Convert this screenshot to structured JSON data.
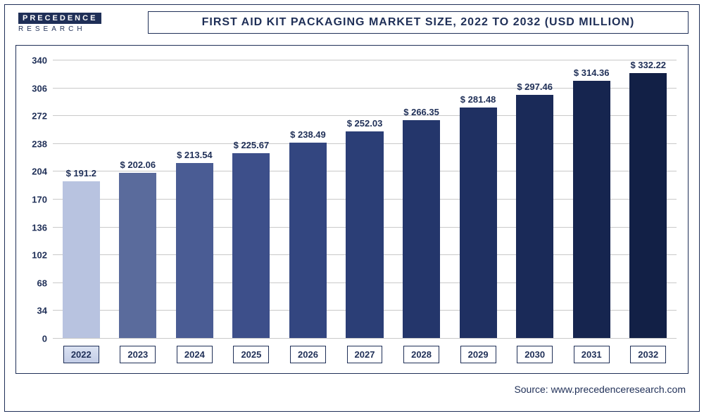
{
  "logo": {
    "line1": "PRECEDENCE",
    "line2": "RESEARCH"
  },
  "title": "FIRST AID KIT PACKAGING MARKET SIZE, 2022 TO 2032 (USD MILLION)",
  "source": "Source: www.precedenceresearch.com",
  "chart": {
    "type": "bar",
    "y_axis": {
      "min": 0,
      "max": 340,
      "ticks": [
        0,
        34,
        68,
        102,
        136,
        170,
        204,
        238,
        272,
        306,
        340
      ]
    },
    "grid_color": "#c9c9c9",
    "border_color": "#1f2f57",
    "text_color": "#1f2f57",
    "currency_prefix": "$ ",
    "bars": [
      {
        "year": "2022",
        "value": 191.2,
        "label": "$ 191.2",
        "color": "#b8c3e0",
        "current": true
      },
      {
        "year": "2023",
        "value": 202.06,
        "label": "$ 202.06",
        "color": "#5a6b9c",
        "current": false
      },
      {
        "year": "2024",
        "value": 213.54,
        "label": "$ 213.54",
        "color": "#4a5c94",
        "current": false
      },
      {
        "year": "2025",
        "value": 225.67,
        "label": "$ 225.67",
        "color": "#3d4f8a",
        "current": false
      },
      {
        "year": "2026",
        "value": 238.49,
        "label": "$ 238.49",
        "color": "#334680",
        "current": false
      },
      {
        "year": "2027",
        "value": 252.03,
        "label": "$ 252.03",
        "color": "#2b3e76",
        "current": false
      },
      {
        "year": "2028",
        "value": 266.35,
        "label": "$ 266.35",
        "color": "#24366b",
        "current": false
      },
      {
        "year": "2029",
        "value": 281.48,
        "label": "$ 281.48",
        "color": "#1f3062",
        "current": false
      },
      {
        "year": "2030",
        "value": 297.46,
        "label": "$ 297.46",
        "color": "#1a2a58",
        "current": false
      },
      {
        "year": "2031",
        "value": 314.36,
        "label": "$ 314.36",
        "color": "#16254f",
        "current": false
      },
      {
        "year": "2032",
        "value": 332.22,
        "label": "$ 332.22",
        "color": "#122046",
        "current": false
      }
    ]
  }
}
